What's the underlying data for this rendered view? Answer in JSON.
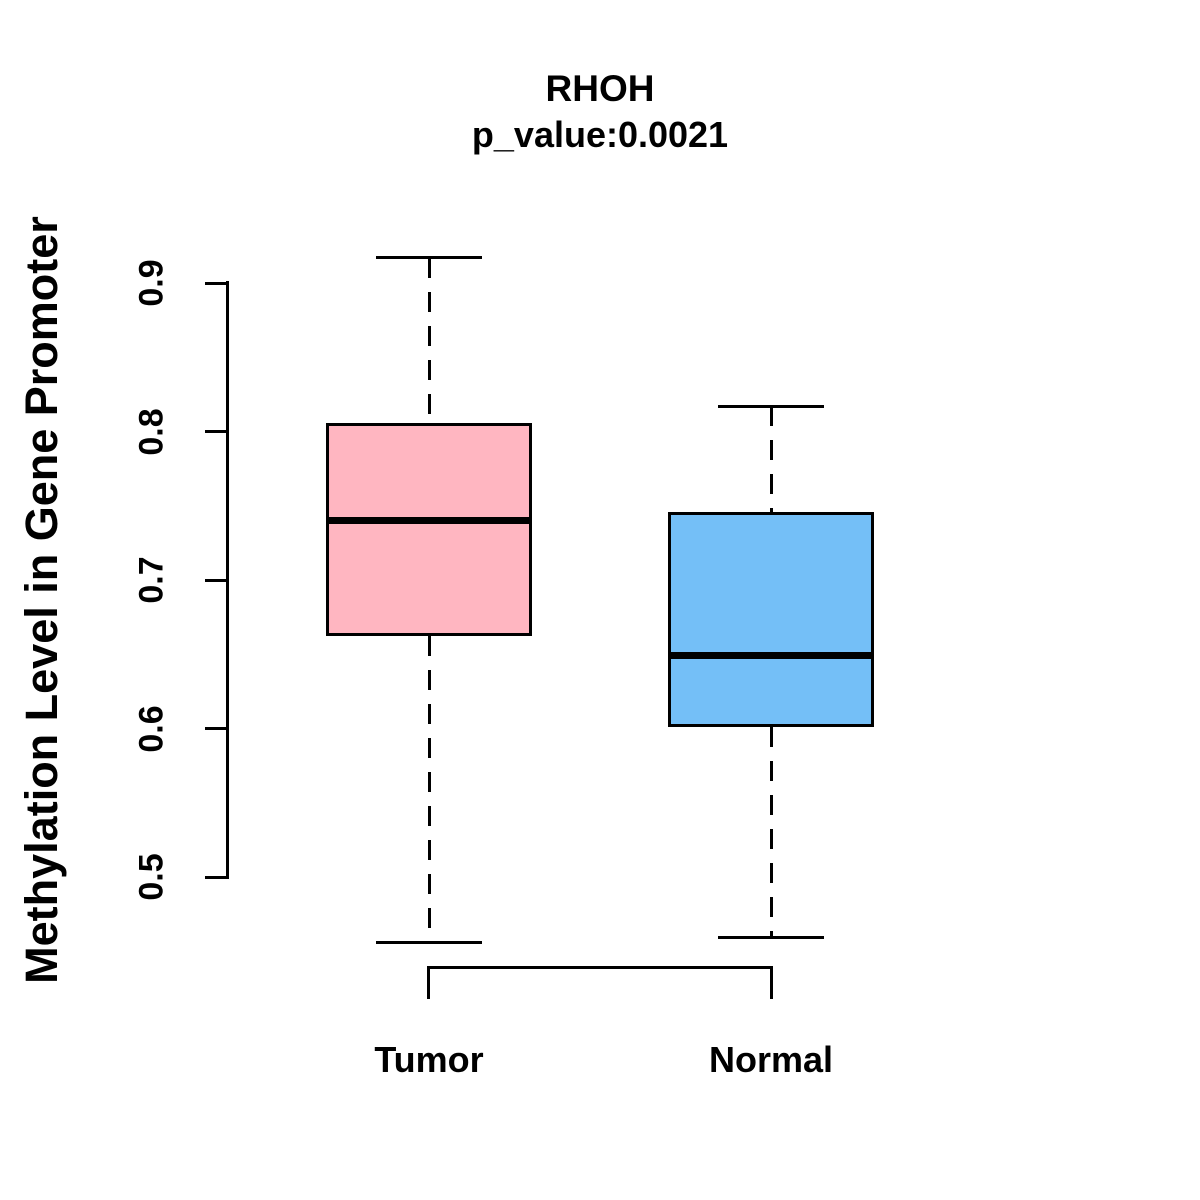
{
  "title": "RHOH",
  "subtitle": "p_value:0.0021",
  "y_axis": {
    "label": "Methylation Level in Gene Promoter",
    "tick_labels": [
      "0.5",
      "0.6",
      "0.7",
      "0.8",
      "0.9"
    ]
  },
  "chart_data": {
    "type": "boxplot",
    "title": "RHOH",
    "subtitle": "p_value:0.0021",
    "ylabel": "Methylation Level in Gene Promoter",
    "ylim": [
      0.44,
      0.93
    ],
    "y_ticks": [
      0.5,
      0.6,
      0.7,
      0.8,
      0.9
    ],
    "grid": false,
    "legend": false,
    "categories": [
      "Tumor",
      "Normal"
    ],
    "series": [
      {
        "name": "Tumor",
        "color": "#FFB6C1",
        "whisker_low": 0.456,
        "q1": 0.662,
        "median": 0.74,
        "q3": 0.806,
        "whisker_high": 0.917
      },
      {
        "name": "Normal",
        "color": "#74BFF7",
        "whisker_low": 0.459,
        "q1": 0.601,
        "median": 0.649,
        "q3": 0.746,
        "whisker_high": 0.817
      }
    ]
  }
}
